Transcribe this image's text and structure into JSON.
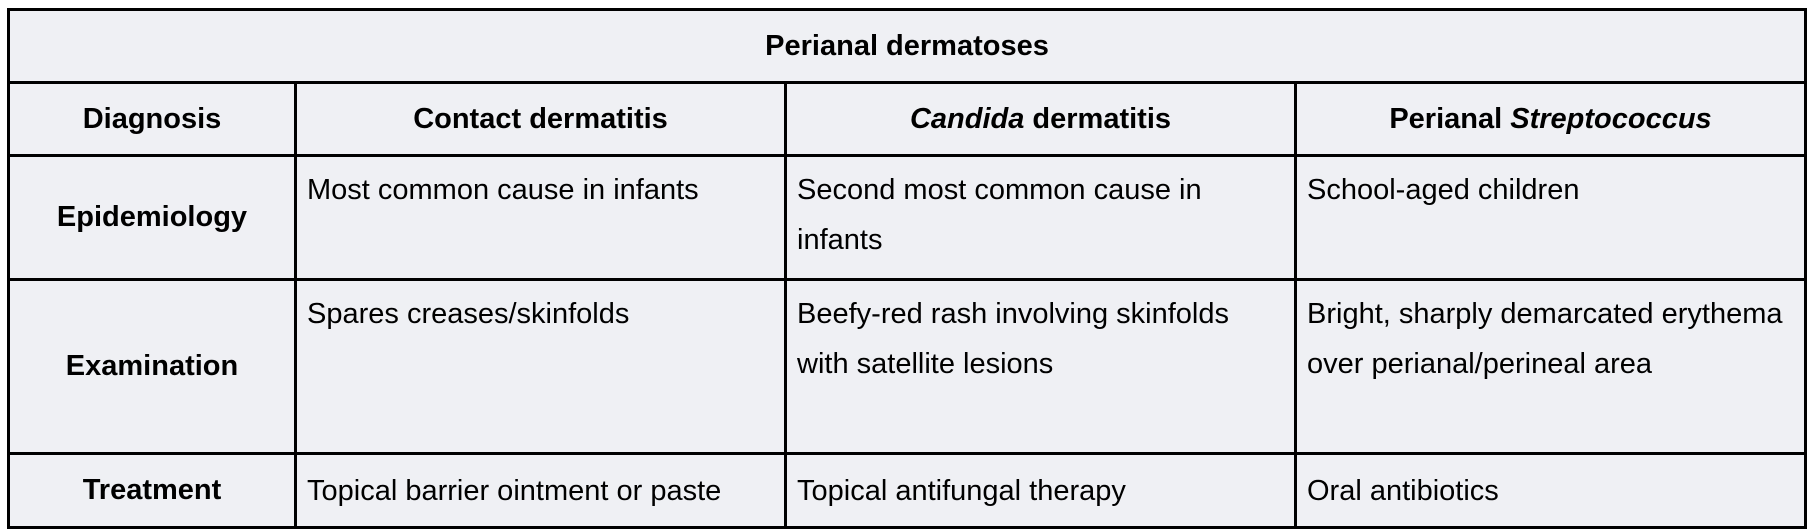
{
  "table": {
    "title": "Perianal dermatoses",
    "header": {
      "col0": "Diagnosis",
      "col1": "Contact dermatitis",
      "col2_italic": "Candida",
      "col2_rest": " dermatitis",
      "col3_plain": "Perianal ",
      "col3_italic": "Streptococcus"
    },
    "rows": [
      {
        "label": "Epidemiology",
        "contact": "Most common cause in infants",
        "candida": "Second most common cause in infants",
        "strep": "School-aged children"
      },
      {
        "label": "Examination",
        "contact": "Spares creases/skinfolds",
        "candida": "Beefy-red rash involving skinfolds with satellite lesions",
        "strep": "Bright, sharply demarcated erythema over perianal/perineal area"
      },
      {
        "label": "Treatment",
        "contact": "Topical barrier ointment or paste",
        "candida": "Topical antifungal therapy",
        "strep": "Oral antibiotics"
      }
    ]
  }
}
